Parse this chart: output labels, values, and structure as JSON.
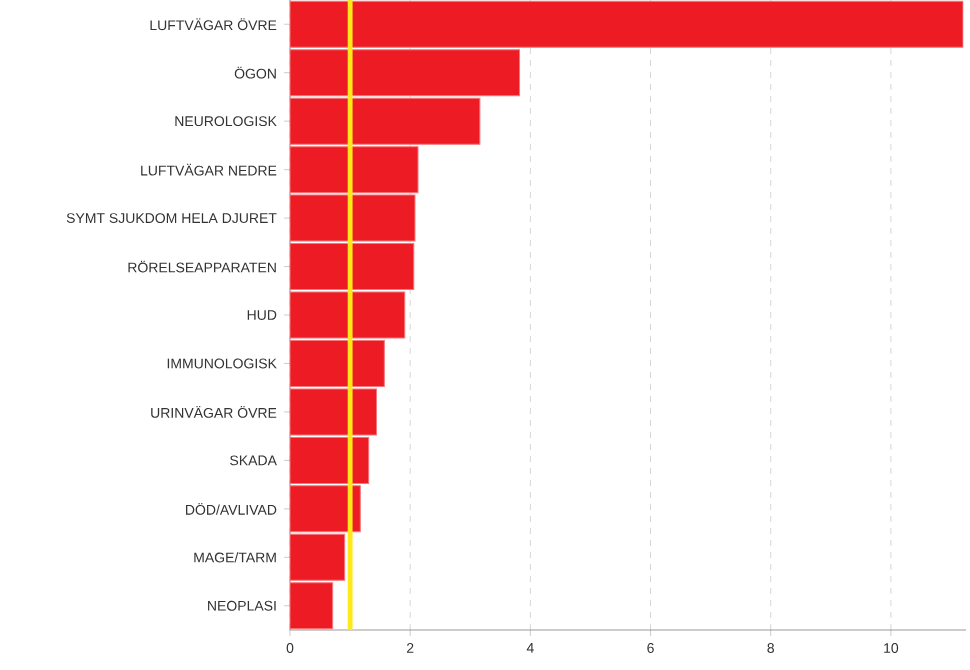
{
  "chart_data": {
    "type": "bar",
    "orientation": "horizontal",
    "categories": [
      "LUFTVÄGAR ÖVRE",
      "ÖGON",
      "NEUROLOGISK",
      "LUFTVÄGAR NEDRE",
      "SYMT SJUKDOM HELA DJURET",
      "RÖRELSEAPPARATEN",
      "HUD",
      "IMMUNOLOGISK",
      "URINVÄGAR ÖVRE",
      "SKADA",
      "DÖD/AVLIVAD",
      "MAGE/TARM",
      "NEOPLASI"
    ],
    "values": [
      11.2,
      3.82,
      3.16,
      2.13,
      2.08,
      2.06,
      1.91,
      1.57,
      1.44,
      1.31,
      1.17,
      0.91,
      0.71
    ],
    "color": "#ed1c24",
    "xlim": [
      0,
      11.25
    ],
    "xticks": [
      0,
      2,
      4,
      6,
      8,
      10
    ],
    "grid": "x",
    "ref_lines": [
      {
        "axis": "x",
        "value": 1,
        "color": "#ffe81a"
      }
    ]
  }
}
